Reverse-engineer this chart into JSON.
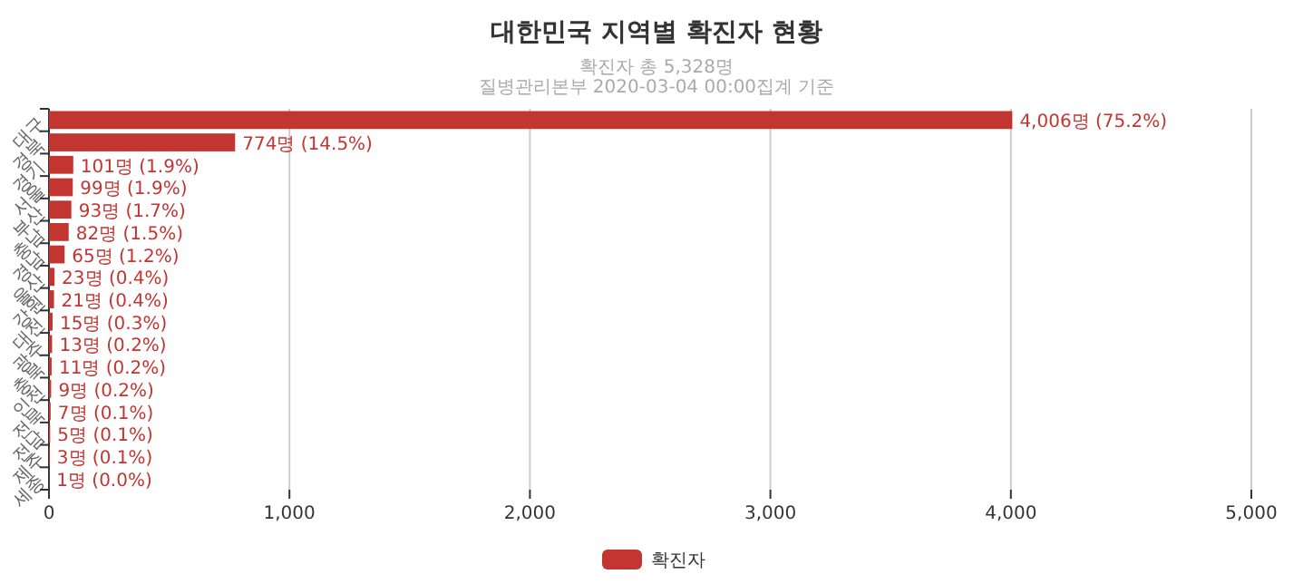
{
  "chart_data": {
    "type": "bar",
    "orientation": "horizontal",
    "title": "대한민국 지역별 확진자 현황",
    "subtitle": "확진자 총 5,328명",
    "annotations": [
      "질병관리본부 2020-03-04 00:00집계 기준"
    ],
    "categories": [
      "대구",
      "경북",
      "경기",
      "서울",
      "부산",
      "충남",
      "경남",
      "울산",
      "강원",
      "대전",
      "광주",
      "충북",
      "인천",
      "전북",
      "전남",
      "제주",
      "세종"
    ],
    "series": [
      {
        "name": "확진자",
        "color": "#c23531",
        "values": [
          4006,
          774,
          101,
          99,
          93,
          82,
          65,
          23,
          21,
          15,
          13,
          11,
          9,
          7,
          5,
          3,
          1
        ],
        "value_labels": [
          "4,006명 (75.2%)",
          "774명 (14.5%)",
          "101명 (1.9%)",
          "99명 (1.9%)",
          "93명 (1.7%)",
          "82명 (1.5%)",
          "65명 (1.2%)",
          "23명 (0.4%)",
          "21명 (0.4%)",
          "15명 (0.3%)",
          "13명 (0.2%)",
          "11명 (0.2%)",
          "9명 (0.2%)",
          "7명 (0.1%)",
          "5명 (0.1%)",
          "3명 (0.1%)",
          "1명 (0.0%)"
        ]
      }
    ],
    "xlim": [
      0,
      5000
    ],
    "xticks": [
      {
        "value": 0,
        "label": "0"
      },
      {
        "value": 1000,
        "label": "1,000"
      },
      {
        "value": 2000,
        "label": "2,000"
      },
      {
        "value": 3000,
        "label": "3,000"
      },
      {
        "value": 4000,
        "label": "4,000"
      },
      {
        "value": 5000,
        "label": "5,000"
      }
    ],
    "grid": "x",
    "legend": "bottom"
  }
}
